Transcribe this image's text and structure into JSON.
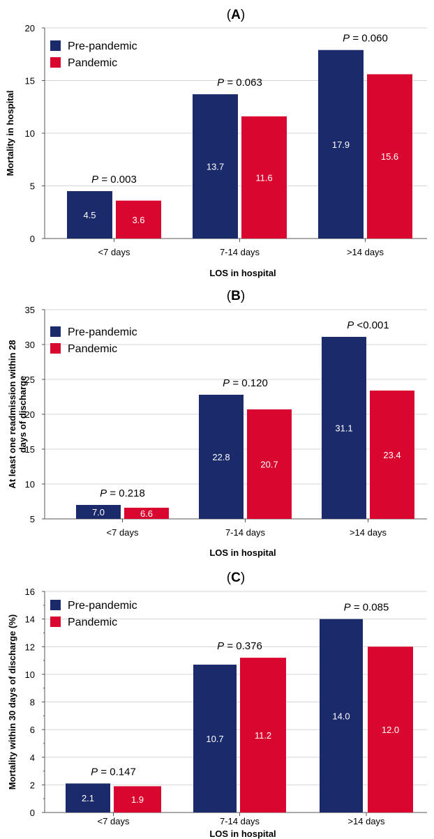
{
  "chart_data": [
    {
      "type": "bar",
      "panel": "A",
      "categories": [
        "<7 days",
        "7-14 days",
        ">14 days"
      ],
      "series": [
        {
          "name": "Pre-pandemic",
          "values": [
            4.5,
            13.7,
            17.9
          ]
        },
        {
          "name": "Pandemic",
          "values": [
            3.6,
            11.6,
            15.6
          ]
        }
      ],
      "bar_labels": [
        [
          "4.5",
          "13.7",
          "17.9"
        ],
        [
          "3.6",
          "11.6",
          "15.6"
        ]
      ],
      "p_values": [
        "0.003",
        "0.063",
        "0.060"
      ],
      "p_operators": [
        "=",
        "=",
        "="
      ],
      "xlabel": "LOS in hospital",
      "ylabel": "Mortality in hospital",
      "ylim": [
        0,
        20
      ],
      "yticks": [
        0,
        5,
        10,
        15,
        20
      ],
      "grid": true,
      "legend_position": "top-left"
    },
    {
      "type": "bar",
      "panel": "B",
      "categories": [
        "<7 days",
        "7-14 days",
        ">14 days"
      ],
      "series": [
        {
          "name": "Pre-pandemic",
          "values": [
            7.0,
            22.8,
            31.1
          ]
        },
        {
          "name": "Pandemic",
          "values": [
            6.6,
            20.7,
            23.4
          ]
        }
      ],
      "bar_labels": [
        [
          "7.0",
          "22.8",
          "31.1"
        ],
        [
          "6.6",
          "20.7",
          "23.4"
        ]
      ],
      "p_values": [
        "0.218",
        "0.120",
        "<0.001"
      ],
      "p_operators": [
        "=",
        "=",
        ""
      ],
      "xlabel": "LOS in hospital",
      "ylabel": [
        "At least one readmission within 28",
        "days of discharge"
      ],
      "ylim": [
        5,
        35
      ],
      "yticks": [
        5,
        10,
        15,
        20,
        25,
        30,
        35
      ],
      "grid": true,
      "legend_position": "top-left"
    },
    {
      "type": "bar",
      "panel": "C",
      "categories": [
        "<7 days",
        "7-14 days",
        ">14 days"
      ],
      "series": [
        {
          "name": "Pre-pandemic",
          "values": [
            2.1,
            10.7,
            14.0
          ]
        },
        {
          "name": "Pandemic",
          "values": [
            1.9,
            11.2,
            12.0
          ]
        }
      ],
      "bar_labels": [
        [
          "2.1",
          "10.7",
          "14.0"
        ],
        [
          "1.9",
          "11.2",
          "12.0"
        ]
      ],
      "p_values": [
        "0.147",
        "0.376",
        "0.085"
      ],
      "p_operators": [
        "=",
        "=",
        "="
      ],
      "xlabel": "LOS in hospital",
      "ylabel": "Mortality within 30 days of discharge (%)",
      "ylim": [
        0,
        16
      ],
      "yticks": [
        0,
        2,
        4,
        6,
        8,
        10,
        12,
        14,
        16
      ],
      "grid": true,
      "legend_position": "top-left"
    }
  ],
  "colors": {
    "pre_pandemic": "#1b2a6b",
    "pandemic": "#d9072f",
    "grid": "#d4d4d4",
    "axis": "#555555"
  }
}
